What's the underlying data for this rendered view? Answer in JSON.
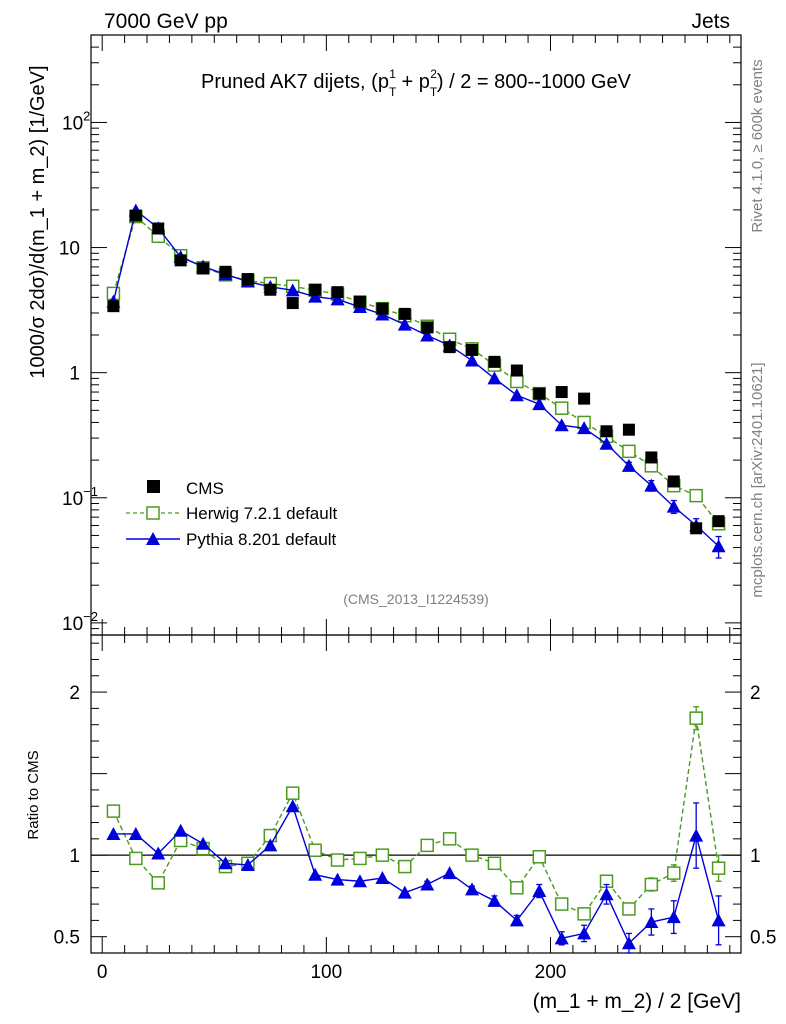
{
  "header": {
    "left": "7000 GeV pp",
    "right": "Jets"
  },
  "side_labels": {
    "rivet": "Rivet 4.1.0, ≥ 600k events",
    "mcplots": "mcplots.cern.ch [arXiv:2401.10621]"
  },
  "colors": {
    "cms": "#000000",
    "herwig": "#4d9a1f",
    "pythia": "#0000dd"
  },
  "chart_data": [
    {
      "type": "scatter",
      "panel": "main",
      "title": "Pruned AK7 dijets, (p_T^1 + p_T^2) / 2 = 800--1000 GeV",
      "title_parts": {
        "prefix": "Pruned AK7 dijets, (p",
        "sub1": "T",
        "sup1": "1",
        "plus": " + p",
        "sub2": "T",
        "sup2": "2",
        "suffix": ") / 2 = 800--1000 GeV"
      },
      "ylabel": "1000/σ   2dσ)/d(m_1 + m_2) [1/GeV]",
      "yscale": "log",
      "ylim": [
        0.008,
        500
      ],
      "xlim": [
        -5,
        285
      ],
      "y_ticks": [
        {
          "value": 0.01,
          "label": "10",
          "exp": "−2"
        },
        {
          "value": 0.1,
          "label": "10",
          "exp": "−1"
        },
        {
          "value": 1,
          "label": "1",
          "exp": ""
        },
        {
          "value": 10,
          "label": "10",
          "exp": ""
        },
        {
          "value": 100,
          "label": "10",
          "exp": "2"
        }
      ],
      "watermark": "(CMS_2013_I1224539)",
      "legend": [
        {
          "name": "CMS",
          "label": "CMS"
        },
        {
          "name": "herwig",
          "label": "Herwig 7.2.1 default"
        },
        {
          "name": "pythia",
          "label": "Pythia 8.201 default"
        }
      ],
      "legend_position": "lower-left",
      "x": [
        5,
        15,
        25,
        35,
        45,
        55,
        65,
        75,
        85,
        95,
        105,
        115,
        125,
        135,
        145,
        155,
        165,
        175,
        185,
        195,
        205,
        215,
        225,
        235,
        245,
        255,
        265,
        275
      ],
      "series": [
        {
          "name": "CMS",
          "values": [
            3.4,
            18.0,
            14.2,
            7.9,
            6.8,
            6.4,
            5.6,
            4.6,
            3.6,
            4.6,
            4.4,
            3.7,
            3.25,
            2.95,
            2.3,
            1.6,
            1.52,
            1.22,
            1.04,
            0.68,
            0.7,
            0.62,
            0.34,
            0.35,
            0.21,
            0.135,
            0.057,
            0.065
          ],
          "errors": []
        },
        {
          "name": "Herwig 7.2.1 default",
          "values": [
            4.3,
            17.7,
            12.3,
            8.6,
            6.9,
            6.05,
            5.45,
            5.15,
            4.9,
            4.55,
            4.25,
            3.65,
            3.25,
            2.85,
            2.35,
            1.85,
            1.55,
            1.15,
            0.85,
            0.68,
            0.52,
            0.4,
            0.31,
            0.235,
            0.18,
            0.125,
            0.104,
            0.062
          ],
          "errors": [
            0,
            0,
            0,
            0,
            0,
            0,
            0,
            0,
            0,
            0,
            0,
            0,
            0,
            0,
            0,
            0,
            0,
            0,
            0,
            0,
            0,
            0,
            0,
            0,
            0,
            0,
            0.006,
            0.004
          ]
        },
        {
          "name": "Pythia 8.201 default",
          "values": [
            3.7,
            19.8,
            14.3,
            8.4,
            7.05,
            6.1,
            5.35,
            4.85,
            4.55,
            4.05,
            3.85,
            3.35,
            2.92,
            2.42,
            1.98,
            1.65,
            1.25,
            0.9,
            0.66,
            0.56,
            0.38,
            0.36,
            0.27,
            0.18,
            0.125,
            0.085,
            0.06,
            0.041
          ],
          "errors": [
            0,
            0,
            0,
            0,
            0,
            0,
            0,
            0,
            0,
            0,
            0,
            0,
            0,
            0,
            0,
            0,
            0,
            0,
            0,
            0,
            0,
            0,
            0,
            0.012,
            0.012,
            0.01,
            0.008,
            0.008
          ]
        }
      ]
    },
    {
      "type": "line",
      "panel": "ratio",
      "ylabel": "Ratio to CMS",
      "xlabel": "(m_1 + m_2) / 2 [GeV]",
      "ylim": [
        0.4,
        2.35
      ],
      "xlim": [
        -5,
        285
      ],
      "x_ticks": [
        0,
        100,
        200
      ],
      "y_ticks": [
        0.5,
        1,
        2
      ],
      "reference_line": 1,
      "x": [
        5,
        15,
        25,
        35,
        45,
        55,
        65,
        75,
        85,
        95,
        105,
        115,
        125,
        135,
        145,
        155,
        165,
        175,
        185,
        195,
        205,
        215,
        225,
        235,
        245,
        255,
        265,
        275
      ],
      "series": [
        {
          "name": "Herwig 7.2.1 default",
          "values": [
            1.27,
            0.98,
            0.83,
            1.09,
            1.04,
            0.93,
            0.95,
            1.12,
            1.38,
            1.03,
            0.97,
            0.98,
            1.0,
            0.93,
            1.06,
            1.1,
            1.0,
            0.95,
            0.8,
            0.99,
            0.7,
            0.64,
            0.84,
            0.67,
            0.82,
            0.89,
            1.84,
            0.92
          ],
          "errors": [
            0,
            0,
            0,
            0,
            0,
            0,
            0,
            0,
            0,
            0,
            0,
            0,
            0,
            0,
            0,
            0,
            0,
            0,
            0,
            0,
            0,
            0,
            0.03,
            0.03,
            0.04,
            0.05,
            0.07,
            0.08
          ]
        },
        {
          "name": "Pythia 8.201 default",
          "values": [
            1.13,
            1.13,
            1.01,
            1.15,
            1.07,
            0.95,
            0.94,
            1.06,
            1.3,
            0.88,
            0.85,
            0.84,
            0.86,
            0.77,
            0.82,
            0.89,
            0.79,
            0.72,
            0.6,
            0.78,
            0.49,
            0.52,
            0.76,
            0.46,
            0.59,
            0.62,
            1.12,
            0.6
          ],
          "errors": [
            0,
            0,
            0,
            0,
            0,
            0,
            0,
            0,
            0,
            0,
            0,
            0,
            0,
            0,
            0.02,
            0,
            0.02,
            0.03,
            0.03,
            0.04,
            0.04,
            0.05,
            0.06,
            0.06,
            0.08,
            0.1,
            0.2,
            0.15
          ]
        }
      ]
    }
  ]
}
